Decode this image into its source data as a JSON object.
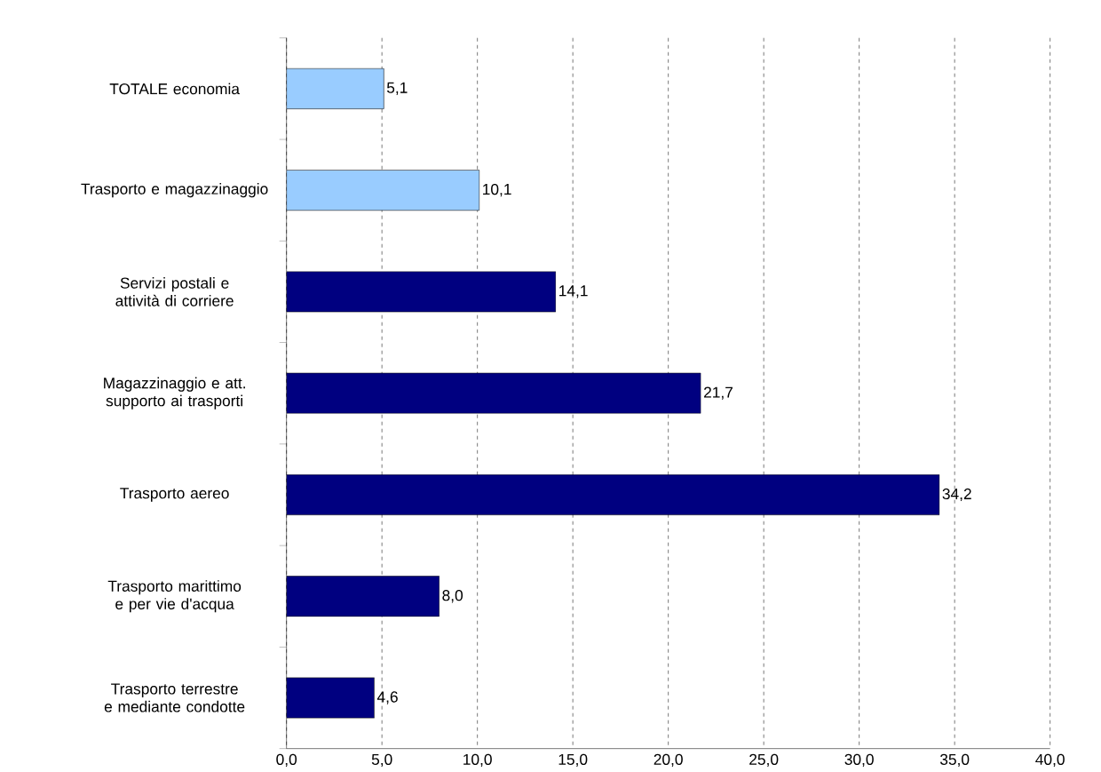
{
  "chart_data": {
    "type": "bar",
    "orientation": "horizontal",
    "categories": [
      "TOTALE economia",
      "Trasporto e magazzinaggio",
      "Servizi postali e attività di corriere",
      "Magazzinaggio e att. supporto ai trasporti",
      "Trasporto aereo",
      "Trasporto marittimo e per vie d'acqua",
      "Trasporto terrestre e mediante condotte"
    ],
    "values": [
      5.1,
      10.1,
      14.1,
      21.7,
      34.2,
      8.0,
      4.6
    ],
    "value_labels": [
      "5,1",
      "10,1",
      "14,1",
      "21,7",
      "34,2",
      "8,0",
      "4,6"
    ],
    "colors": [
      "#99ccff",
      "#99ccff",
      "#000080",
      "#000080",
      "#000080",
      "#000080",
      "#000080"
    ],
    "xlim": [
      0,
      40
    ],
    "xticks": [
      {
        "value": 0,
        "label": "0,0"
      },
      {
        "value": 5,
        "label": "5,0"
      },
      {
        "value": 10,
        "label": "10,0"
      },
      {
        "value": 15,
        "label": "15,0"
      },
      {
        "value": 20,
        "label": "20,0"
      },
      {
        "value": 25,
        "label": "25,0"
      },
      {
        "value": 30,
        "label": "30,0"
      },
      {
        "value": 35,
        "label": "35,0"
      },
      {
        "value": 40,
        "label": "40,0"
      }
    ],
    "grid": "x"
  }
}
